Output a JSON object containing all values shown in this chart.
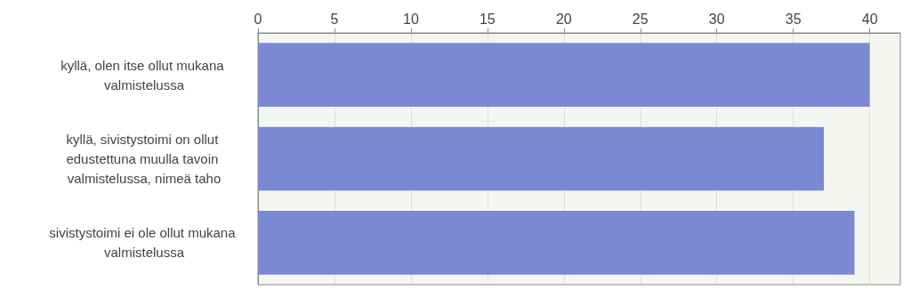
{
  "chart_data": {
    "type": "bar",
    "orientation": "horizontal",
    "categories": [
      "kyllä, olen itse ollut mukana valmistelussa",
      "kyllä, sivistystoimi on ollut edustettuna muulla tavoin valmistelussa, nimeä taho",
      "sivistystoimi ei ole ollut mukana valmistelussa"
    ],
    "values": [
      40,
      37,
      39
    ],
    "color": "#7b88d3",
    "xlim": [
      0,
      42
    ],
    "xticks": [
      0,
      5,
      10,
      15,
      20,
      25,
      30,
      35,
      40
    ],
    "grid": "x"
  }
}
